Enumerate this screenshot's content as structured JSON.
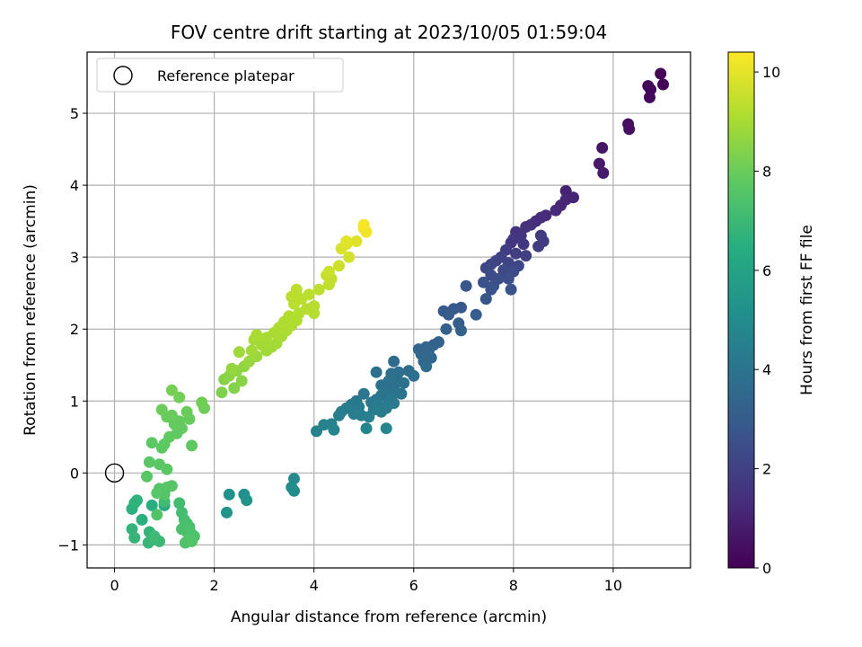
{
  "chart_data": {
    "type": "scatter",
    "title": "FOV centre drift starting at 2023/10/05 01:59:04",
    "xlabel": "Angular distance from reference (arcmin)",
    "ylabel": "Rotation from reference (arcmin)",
    "xlim": [
      -0.55,
      11.55
    ],
    "ylim": [
      -1.32,
      5.85
    ],
    "xticks": [
      0,
      2,
      4,
      6,
      8,
      10
    ],
    "yticks": [
      -1,
      0,
      1,
      2,
      3,
      4,
      5
    ],
    "grid": true,
    "legend": {
      "placement": "upper-left",
      "entries": [
        "Reference platepar"
      ]
    },
    "reference_point": {
      "x": 0,
      "y": 0
    },
    "colorbar": {
      "label": "Hours from first FF file",
      "colormap": "viridis",
      "range": [
        0,
        10.4
      ],
      "ticks": [
        0,
        2,
        4,
        6,
        8,
        10
      ]
    },
    "points": [
      {
        "x": 10.95,
        "y": 5.55,
        "c": 0.05
      },
      {
        "x": 11.0,
        "y": 5.4,
        "c": 0.1
      },
      {
        "x": 10.7,
        "y": 5.38,
        "c": 0.15
      },
      {
        "x": 10.75,
        "y": 5.33,
        "c": 0.2
      },
      {
        "x": 10.73,
        "y": 5.22,
        "c": 0.25
      },
      {
        "x": 10.3,
        "y": 4.85,
        "c": 0.4
      },
      {
        "x": 10.32,
        "y": 4.78,
        "c": 0.45
      },
      {
        "x": 9.78,
        "y": 4.52,
        "c": 0.6
      },
      {
        "x": 9.72,
        "y": 4.3,
        "c": 0.7
      },
      {
        "x": 9.8,
        "y": 4.17,
        "c": 0.75
      },
      {
        "x": 9.05,
        "y": 3.92,
        "c": 1.0
      },
      {
        "x": 9.2,
        "y": 3.83,
        "c": 1.05
      },
      {
        "x": 9.05,
        "y": 3.8,
        "c": 1.1
      },
      {
        "x": 8.95,
        "y": 3.72,
        "c": 1.15
      },
      {
        "x": 8.85,
        "y": 3.65,
        "c": 1.2
      },
      {
        "x": 8.65,
        "y": 3.58,
        "c": 1.25
      },
      {
        "x": 8.55,
        "y": 3.55,
        "c": 1.3
      },
      {
        "x": 8.45,
        "y": 3.5,
        "c": 1.35
      },
      {
        "x": 8.35,
        "y": 3.45,
        "c": 1.4
      },
      {
        "x": 8.25,
        "y": 3.42,
        "c": 1.45
      },
      {
        "x": 8.05,
        "y": 3.35,
        "c": 1.5
      },
      {
        "x": 8.15,
        "y": 3.3,
        "c": 1.55
      },
      {
        "x": 8.0,
        "y": 3.25,
        "c": 1.6
      },
      {
        "x": 7.95,
        "y": 3.2,
        "c": 1.65
      },
      {
        "x": 8.2,
        "y": 3.18,
        "c": 1.7
      },
      {
        "x": 8.55,
        "y": 3.3,
        "c": 1.75
      },
      {
        "x": 8.6,
        "y": 3.22,
        "c": 1.8
      },
      {
        "x": 8.5,
        "y": 3.15,
        "c": 1.82
      },
      {
        "x": 7.85,
        "y": 3.1,
        "c": 1.85
      },
      {
        "x": 8.05,
        "y": 3.05,
        "c": 1.9
      },
      {
        "x": 8.25,
        "y": 3.02,
        "c": 1.95
      },
      {
        "x": 7.75,
        "y": 3.0,
        "c": 2.0
      },
      {
        "x": 7.65,
        "y": 2.95,
        "c": 2.05
      },
      {
        "x": 7.9,
        "y": 2.92,
        "c": 2.1
      },
      {
        "x": 8.1,
        "y": 2.88,
        "c": 2.15
      },
      {
        "x": 7.55,
        "y": 2.9,
        "c": 2.2
      },
      {
        "x": 7.45,
        "y": 2.85,
        "c": 2.25
      },
      {
        "x": 7.8,
        "y": 2.82,
        "c": 2.3
      },
      {
        "x": 8.0,
        "y": 2.8,
        "c": 2.35
      },
      {
        "x": 7.55,
        "y": 2.75,
        "c": 2.4
      },
      {
        "x": 7.7,
        "y": 2.7,
        "c": 2.45
      },
      {
        "x": 7.9,
        "y": 2.7,
        "c": 2.5
      },
      {
        "x": 7.4,
        "y": 2.65,
        "c": 2.55
      },
      {
        "x": 7.6,
        "y": 2.6,
        "c": 2.6
      },
      {
        "x": 7.95,
        "y": 2.55,
        "c": 2.65
      },
      {
        "x": 7.55,
        "y": 2.55,
        "c": 2.7
      },
      {
        "x": 7.45,
        "y": 2.42,
        "c": 2.75
      },
      {
        "x": 7.05,
        "y": 2.6,
        "c": 2.8
      },
      {
        "x": 6.95,
        "y": 2.3,
        "c": 2.85
      },
      {
        "x": 6.8,
        "y": 2.28,
        "c": 2.9
      },
      {
        "x": 6.6,
        "y": 2.25,
        "c": 2.95
      },
      {
        "x": 6.7,
        "y": 2.2,
        "c": 3.0
      },
      {
        "x": 7.25,
        "y": 2.2,
        "c": 3.05
      },
      {
        "x": 6.9,
        "y": 2.08,
        "c": 3.1
      },
      {
        "x": 6.65,
        "y": 2.0,
        "c": 3.15
      },
      {
        "x": 6.95,
        "y": 1.98,
        "c": 3.2
      },
      {
        "x": 6.5,
        "y": 1.82,
        "c": 3.25
      },
      {
        "x": 6.4,
        "y": 1.78,
        "c": 3.3
      },
      {
        "x": 6.25,
        "y": 1.75,
        "c": 3.35
      },
      {
        "x": 6.1,
        "y": 1.72,
        "c": 3.4
      },
      {
        "x": 6.3,
        "y": 1.7,
        "c": 3.42
      },
      {
        "x": 6.15,
        "y": 1.65,
        "c": 3.45
      },
      {
        "x": 6.35,
        "y": 1.6,
        "c": 3.5
      },
      {
        "x": 6.2,
        "y": 1.55,
        "c": 3.55
      },
      {
        "x": 5.6,
        "y": 1.55,
        "c": 3.6
      },
      {
        "x": 6.25,
        "y": 1.48,
        "c": 3.65
      },
      {
        "x": 5.9,
        "y": 1.42,
        "c": 3.7
      },
      {
        "x": 5.7,
        "y": 1.4,
        "c": 3.72
      },
      {
        "x": 5.55,
        "y": 1.38,
        "c": 3.75
      },
      {
        "x": 6.0,
        "y": 1.35,
        "c": 3.78
      },
      {
        "x": 5.25,
        "y": 1.4,
        "c": 3.8
      },
      {
        "x": 5.65,
        "y": 1.32,
        "c": 3.82
      },
      {
        "x": 5.5,
        "y": 1.28,
        "c": 3.85
      },
      {
        "x": 5.8,
        "y": 1.25,
        "c": 3.88
      },
      {
        "x": 5.35,
        "y": 1.22,
        "c": 3.9
      },
      {
        "x": 5.6,
        "y": 1.18,
        "c": 3.92
      },
      {
        "x": 5.45,
        "y": 1.15,
        "c": 3.95
      },
      {
        "x": 5.75,
        "y": 1.1,
        "c": 3.98
      },
      {
        "x": 5.35,
        "y": 1.08,
        "c": 4.0
      },
      {
        "x": 5.55,
        "y": 1.05,
        "c": 4.02
      },
      {
        "x": 5.0,
        "y": 1.1,
        "c": 4.05
      },
      {
        "x": 5.25,
        "y": 1.02,
        "c": 4.08
      },
      {
        "x": 5.5,
        "y": 1.0,
        "c": 4.1
      },
      {
        "x": 4.85,
        "y": 1.0,
        "c": 4.12
      },
      {
        "x": 5.15,
        "y": 0.98,
        "c": 4.15
      },
      {
        "x": 5.6,
        "y": 0.97,
        "c": 4.18
      },
      {
        "x": 4.75,
        "y": 0.95,
        "c": 4.2
      },
      {
        "x": 5.3,
        "y": 0.93,
        "c": 4.22
      },
      {
        "x": 4.9,
        "y": 0.92,
        "c": 4.25
      },
      {
        "x": 4.65,
        "y": 0.9,
        "c": 4.28
      },
      {
        "x": 5.45,
        "y": 0.9,
        "c": 4.3
      },
      {
        "x": 5.2,
        "y": 0.88,
        "c": 4.32
      },
      {
        "x": 4.55,
        "y": 0.85,
        "c": 4.35
      },
      {
        "x": 5.35,
        "y": 0.85,
        "c": 4.38
      },
      {
        "x": 4.8,
        "y": 0.82,
        "c": 4.4
      },
      {
        "x": 4.5,
        "y": 0.8,
        "c": 4.42
      },
      {
        "x": 4.95,
        "y": 0.8,
        "c": 4.45
      },
      {
        "x": 5.1,
        "y": 0.78,
        "c": 4.48
      },
      {
        "x": 4.35,
        "y": 0.68,
        "c": 4.5
      },
      {
        "x": 4.2,
        "y": 0.67,
        "c": 4.55
      },
      {
        "x": 4.05,
        "y": 0.58,
        "c": 4.6
      },
      {
        "x": 4.4,
        "y": 0.6,
        "c": 4.65
      },
      {
        "x": 5.05,
        "y": 0.62,
        "c": 4.7
      },
      {
        "x": 5.45,
        "y": 0.62,
        "c": 4.75
      },
      {
        "x": 3.6,
        "y": -0.08,
        "c": 4.9
      },
      {
        "x": 3.55,
        "y": -0.2,
        "c": 5.0
      },
      {
        "x": 3.6,
        "y": -0.25,
        "c": 5.05
      },
      {
        "x": 2.6,
        "y": -0.3,
        "c": 5.2
      },
      {
        "x": 2.3,
        "y": -0.3,
        "c": 5.25
      },
      {
        "x": 2.65,
        "y": -0.38,
        "c": 5.3
      },
      {
        "x": 2.25,
        "y": -0.55,
        "c": 5.4
      },
      {
        "x": 1.0,
        "y": -0.45,
        "c": 6.3
      },
      {
        "x": 0.75,
        "y": -0.45,
        "c": 6.5
      },
      {
        "x": 0.55,
        "y": -0.65,
        "c": 6.55
      },
      {
        "x": 0.35,
        "y": -0.5,
        "c": 6.6
      },
      {
        "x": 0.4,
        "y": -0.42,
        "c": 6.65
      },
      {
        "x": 0.45,
        "y": -0.38,
        "c": 6.7
      },
      {
        "x": 0.7,
        "y": -0.82,
        "c": 6.75
      },
      {
        "x": 0.35,
        "y": -0.78,
        "c": 6.8
      },
      {
        "x": 0.4,
        "y": -0.9,
        "c": 6.85
      },
      {
        "x": 0.68,
        "y": -0.97,
        "c": 6.9
      },
      {
        "x": 0.82,
        "y": -0.92,
        "c": 6.95
      },
      {
        "x": 0.9,
        "y": -0.95,
        "c": 7.0
      },
      {
        "x": 0.8,
        "y": -0.88,
        "c": 7.05
      },
      {
        "x": 1.0,
        "y": -0.4,
        "c": 7.1
      },
      {
        "x": 1.3,
        "y": -0.42,
        "c": 7.15
      },
      {
        "x": 1.35,
        "y": -0.55,
        "c": 7.2
      },
      {
        "x": 1.4,
        "y": -0.65,
        "c": 7.25
      },
      {
        "x": 1.45,
        "y": -0.7,
        "c": 7.3
      },
      {
        "x": 1.5,
        "y": -0.75,
        "c": 7.32
      },
      {
        "x": 1.35,
        "y": -0.78,
        "c": 7.35
      },
      {
        "x": 1.45,
        "y": -0.82,
        "c": 7.38
      },
      {
        "x": 1.55,
        "y": -0.85,
        "c": 7.4
      },
      {
        "x": 1.6,
        "y": -0.88,
        "c": 7.42
      },
      {
        "x": 1.5,
        "y": -0.92,
        "c": 7.45
      },
      {
        "x": 1.42,
        "y": -0.97,
        "c": 7.48
      },
      {
        "x": 1.55,
        "y": -0.95,
        "c": 7.5
      },
      {
        "x": 0.85,
        "y": -0.58,
        "c": 7.52
      },
      {
        "x": 1.0,
        "y": -0.3,
        "c": 7.55
      },
      {
        "x": 0.9,
        "y": -0.22,
        "c": 7.58
      },
      {
        "x": 1.05,
        "y": -0.2,
        "c": 7.6
      },
      {
        "x": 1.15,
        "y": -0.18,
        "c": 7.62
      },
      {
        "x": 0.85,
        "y": -0.28,
        "c": 7.64
      },
      {
        "x": 0.65,
        "y": -0.05,
        "c": 7.66
      },
      {
        "x": 0.7,
        "y": 0.15,
        "c": 7.68
      },
      {
        "x": 0.9,
        "y": 0.12,
        "c": 7.7
      },
      {
        "x": 1.05,
        "y": 0.05,
        "c": 7.72
      },
      {
        "x": 0.75,
        "y": 0.42,
        "c": 7.74
      },
      {
        "x": 0.95,
        "y": 0.35,
        "c": 7.76
      },
      {
        "x": 1.0,
        "y": 0.4,
        "c": 7.78
      },
      {
        "x": 1.25,
        "y": 0.55,
        "c": 7.8
      },
      {
        "x": 1.55,
        "y": 0.38,
        "c": 7.82
      },
      {
        "x": 1.1,
        "y": 0.5,
        "c": 7.84
      },
      {
        "x": 1.35,
        "y": 0.62,
        "c": 7.86
      },
      {
        "x": 1.2,
        "y": 0.68,
        "c": 7.88
      },
      {
        "x": 1.3,
        "y": 0.72,
        "c": 7.9
      },
      {
        "x": 1.5,
        "y": 0.75,
        "c": 7.92
      },
      {
        "x": 1.05,
        "y": 0.78,
        "c": 7.94
      },
      {
        "x": 1.15,
        "y": 0.8,
        "c": 7.96
      },
      {
        "x": 1.45,
        "y": 0.85,
        "c": 7.98
      },
      {
        "x": 0.95,
        "y": 0.88,
        "c": 8.0
      },
      {
        "x": 1.8,
        "y": 0.9,
        "c": 8.05
      },
      {
        "x": 1.75,
        "y": 0.98,
        "c": 8.1
      },
      {
        "x": 1.3,
        "y": 1.05,
        "c": 8.15
      },
      {
        "x": 1.15,
        "y": 1.15,
        "c": 8.2
      },
      {
        "x": 2.15,
        "y": 1.12,
        "c": 8.35
      },
      {
        "x": 2.4,
        "y": 1.18,
        "c": 8.4
      },
      {
        "x": 2.2,
        "y": 1.3,
        "c": 8.45
      },
      {
        "x": 2.55,
        "y": 1.28,
        "c": 8.5
      },
      {
        "x": 2.3,
        "y": 1.35,
        "c": 8.55
      },
      {
        "x": 2.45,
        "y": 1.42,
        "c": 8.6
      },
      {
        "x": 2.6,
        "y": 1.48,
        "c": 8.65
      },
      {
        "x": 2.35,
        "y": 1.45,
        "c": 8.7
      },
      {
        "x": 2.7,
        "y": 1.55,
        "c": 8.75
      },
      {
        "x": 2.85,
        "y": 1.62,
        "c": 8.8
      },
      {
        "x": 2.5,
        "y": 1.68,
        "c": 8.85
      },
      {
        "x": 2.75,
        "y": 1.7,
        "c": 8.88
      },
      {
        "x": 3.05,
        "y": 1.7,
        "c": 8.9
      },
      {
        "x": 3.15,
        "y": 1.75,
        "c": 8.92
      },
      {
        "x": 2.95,
        "y": 1.78,
        "c": 8.94
      },
      {
        "x": 3.25,
        "y": 1.8,
        "c": 8.96
      },
      {
        "x": 2.8,
        "y": 1.85,
        "c": 8.98
      },
      {
        "x": 3.05,
        "y": 1.88,
        "c": 9.0
      },
      {
        "x": 3.35,
        "y": 1.9,
        "c": 9.02
      },
      {
        "x": 2.85,
        "y": 1.92,
        "c": 9.04
      },
      {
        "x": 3.2,
        "y": 1.95,
        "c": 9.06
      },
      {
        "x": 3.45,
        "y": 1.98,
        "c": 9.08
      },
      {
        "x": 3.3,
        "y": 2.02,
        "c": 9.1
      },
      {
        "x": 3.55,
        "y": 2.05,
        "c": 9.12
      },
      {
        "x": 3.4,
        "y": 2.1,
        "c": 9.14
      },
      {
        "x": 3.65,
        "y": 2.12,
        "c": 9.16
      },
      {
        "x": 3.5,
        "y": 2.18,
        "c": 9.18
      },
      {
        "x": 3.7,
        "y": 2.22,
        "c": 9.2
      },
      {
        "x": 4.0,
        "y": 2.22,
        "c": 9.22
      },
      {
        "x": 3.85,
        "y": 2.28,
        "c": 9.24
      },
      {
        "x": 4.0,
        "y": 2.32,
        "c": 9.26
      },
      {
        "x": 3.6,
        "y": 2.35,
        "c": 9.28
      },
      {
        "x": 3.75,
        "y": 2.42,
        "c": 9.3
      },
      {
        "x": 3.55,
        "y": 2.45,
        "c": 9.32
      },
      {
        "x": 3.9,
        "y": 2.48,
        "c": 9.34
      },
      {
        "x": 3.65,
        "y": 2.55,
        "c": 9.36
      },
      {
        "x": 4.1,
        "y": 2.55,
        "c": 9.38
      },
      {
        "x": 4.3,
        "y": 2.62,
        "c": 9.4
      },
      {
        "x": 4.35,
        "y": 2.7,
        "c": 9.45
      },
      {
        "x": 4.25,
        "y": 2.75,
        "c": 9.5
      },
      {
        "x": 4.3,
        "y": 2.8,
        "c": 9.55
      },
      {
        "x": 4.5,
        "y": 2.88,
        "c": 9.6
      },
      {
        "x": 4.7,
        "y": 3.0,
        "c": 9.7
      },
      {
        "x": 4.55,
        "y": 3.12,
        "c": 9.8
      },
      {
        "x": 4.65,
        "y": 3.18,
        "c": 9.85
      },
      {
        "x": 4.85,
        "y": 3.22,
        "c": 9.9
      },
      {
        "x": 4.65,
        "y": 3.22,
        "c": 9.95
      },
      {
        "x": 5.0,
        "y": 3.4,
        "c": 10.1
      },
      {
        "x": 5.05,
        "y": 3.35,
        "c": 10.2
      },
      {
        "x": 5.0,
        "y": 3.45,
        "c": 10.3
      }
    ]
  }
}
